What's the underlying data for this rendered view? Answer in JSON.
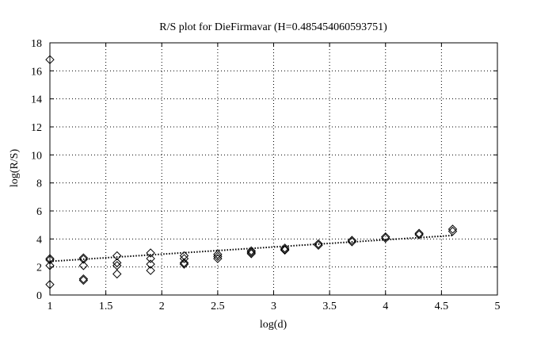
{
  "chart_data": {
    "type": "scatter",
    "title": "R/S plot for DieFirmavar (H=0.485454060593751)",
    "xlabel": "log(d)",
    "ylabel": "log(R/S)",
    "xlim": [
      1,
      5
    ],
    "ylim": [
      0,
      18
    ],
    "xticks": [
      "1",
      "1.5",
      "2",
      "2.5",
      "3",
      "3.5",
      "4",
      "4.5",
      "5"
    ],
    "yticks": [
      "0",
      "2",
      "4",
      "6",
      "8",
      "10",
      "12",
      "14",
      "16",
      "18"
    ],
    "grid": true,
    "marker": "diamond",
    "points": [
      [
        1.0,
        16.8
      ],
      [
        1.0,
        2.6
      ],
      [
        1.0,
        2.5
      ],
      [
        1.0,
        2.1
      ],
      [
        1.0,
        0.75
      ],
      [
        1.3,
        2.65
      ],
      [
        1.3,
        2.55
      ],
      [
        1.3,
        2.1
      ],
      [
        1.3,
        1.15
      ],
      [
        1.3,
        1.05
      ],
      [
        1.6,
        2.8
      ],
      [
        1.6,
        2.3
      ],
      [
        1.6,
        2.1
      ],
      [
        1.6,
        1.5
      ],
      [
        1.9,
        3.0
      ],
      [
        1.9,
        2.6
      ],
      [
        1.9,
        2.2
      ],
      [
        1.9,
        1.75
      ],
      [
        2.2,
        2.8
      ],
      [
        2.2,
        2.6
      ],
      [
        2.2,
        2.3
      ],
      [
        2.2,
        2.2
      ],
      [
        2.5,
        2.9
      ],
      [
        2.5,
        2.75
      ],
      [
        2.5,
        2.6
      ],
      [
        2.8,
        3.15
      ],
      [
        2.8,
        3.05
      ],
      [
        2.8,
        2.95
      ],
      [
        3.1,
        3.35
      ],
      [
        3.1,
        3.25
      ],
      [
        3.1,
        3.2
      ],
      [
        3.4,
        3.65
      ],
      [
        3.4,
        3.55
      ],
      [
        3.7,
        3.9
      ],
      [
        3.7,
        3.8
      ],
      [
        4.0,
        4.15
      ],
      [
        4.0,
        4.05
      ],
      [
        4.3,
        4.4
      ],
      [
        4.3,
        4.3
      ],
      [
        4.6,
        4.7
      ],
      [
        4.6,
        4.55
      ]
    ],
    "fit_line": [
      [
        1.0,
        2.4
      ],
      [
        4.6,
        4.25
      ]
    ]
  }
}
